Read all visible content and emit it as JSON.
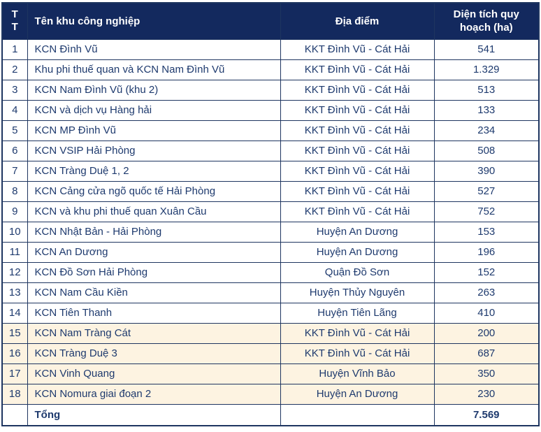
{
  "colors": {
    "header_bg": "#13295e",
    "header_text": "#ffffff",
    "body_text": "#1e3a6e",
    "border": "#1e3560",
    "highlight_bg": "#fdf3e1",
    "row_bg": "#ffffff"
  },
  "table": {
    "columns": [
      {
        "key": "tt",
        "label": "TT"
      },
      {
        "key": "name",
        "label": "Tên khu công nghiệp"
      },
      {
        "key": "location",
        "label": "Địa điểm"
      },
      {
        "key": "area",
        "label": "Diện tích quy hoạch (ha)"
      }
    ],
    "rows": [
      {
        "tt": "1",
        "name": "KCN Đình Vũ",
        "location": "KKT Đình Vũ - Cát Hải",
        "area": "541",
        "highlight": false
      },
      {
        "tt": "2",
        "name": "Khu phi thuế quan và KCN Nam Đình Vũ",
        "location": "KKT Đình Vũ - Cát Hải",
        "area": "1.329",
        "highlight": false
      },
      {
        "tt": "3",
        "name": "KCN Nam Đình Vũ (khu 2)",
        "location": "KKT Đình Vũ - Cát Hải",
        "area": "513",
        "highlight": false
      },
      {
        "tt": "4",
        "name": "KCN và dịch vụ Hàng hải",
        "location": "KKT Đình Vũ - Cát Hải",
        "area": "133",
        "highlight": false
      },
      {
        "tt": "5",
        "name": "KCN MP Đình Vũ",
        "location": "KKT Đình Vũ - Cát Hải",
        "area": "234",
        "highlight": false
      },
      {
        "tt": "6",
        "name": "KCN VSIP Hải Phòng",
        "location": "KKT Đình Vũ - Cát Hải",
        "area": "508",
        "highlight": false
      },
      {
        "tt": "7",
        "name": "KCN Tràng Duệ 1, 2",
        "location": "KKT Đình Vũ - Cát Hải",
        "area": "390",
        "highlight": false
      },
      {
        "tt": "8",
        "name": "KCN Cảng cửa ngõ quốc tế Hải Phòng",
        "location": "KKT Đình Vũ - Cát Hải",
        "area": "527",
        "highlight": false
      },
      {
        "tt": "9",
        "name": "KCN và khu phi thuế quan Xuân Cầu",
        "location": "KKT Đình Vũ - Cát Hải",
        "area": "752",
        "highlight": false
      },
      {
        "tt": "10",
        "name": "KCN Nhật Bản - Hải Phòng",
        "location": "Huyện An Dương",
        "area": "153",
        "highlight": false
      },
      {
        "tt": "11",
        "name": "KCN An Dương",
        "location": "Huyện An Dương",
        "area": "196",
        "highlight": false
      },
      {
        "tt": "12",
        "name": "KCN Đồ Sơn Hải Phòng",
        "location": "Quận Đồ Sơn",
        "area": "152",
        "highlight": false
      },
      {
        "tt": "13",
        "name": "KCN Nam Cầu Kiền",
        "location": "Huyện Thủy Nguyên",
        "area": "263",
        "highlight": false
      },
      {
        "tt": "14",
        "name": "KCN Tiên Thanh",
        "location": "Huyện Tiên Lãng",
        "area": "410",
        "highlight": false
      },
      {
        "tt": "15",
        "name": "KCN Nam Tràng Cát",
        "location": "KKT Đình Vũ - Cát Hải",
        "area": "200",
        "highlight": true
      },
      {
        "tt": "16",
        "name": "KCN Tràng Duệ 3",
        "location": "KKT Đình Vũ - Cát Hải",
        "area": "687",
        "highlight": true
      },
      {
        "tt": "17",
        "name": "KCN Vinh Quang",
        "location": "Huyện Vĩnh Bảo",
        "area": "350",
        "highlight": true
      },
      {
        "tt": "18",
        "name": "KCN Nomura giai đoạn 2",
        "location": "Huyện An Dương",
        "area": "230",
        "highlight": true
      }
    ],
    "total": {
      "label": "Tổng",
      "area": "7.569"
    }
  }
}
